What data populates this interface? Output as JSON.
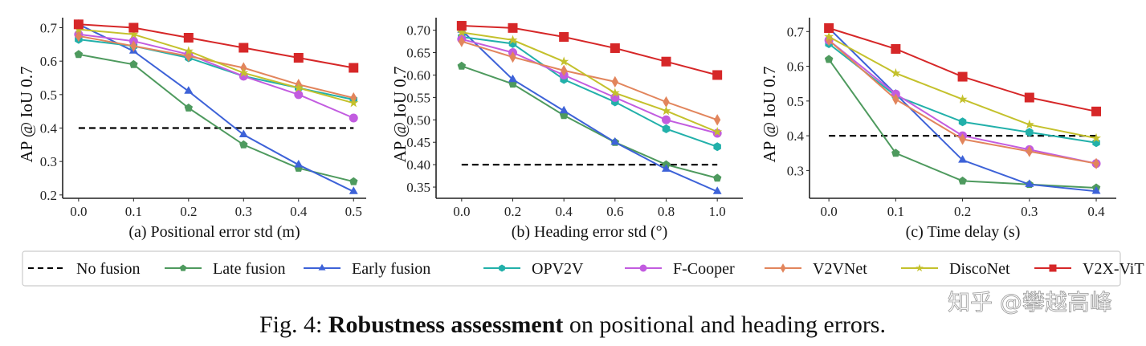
{
  "chart_data": [
    {
      "type": "line",
      "xlabel": "(a) Positional error std (m)",
      "ylabel": "AP @ IoU 0.7",
      "x": [
        0.0,
        0.1,
        0.2,
        0.3,
        0.4,
        0.5
      ],
      "xticks": [
        "0.0",
        "0.1",
        "0.2",
        "0.3",
        "0.4",
        "0.5"
      ],
      "yticks": [
        "0.2",
        "0.3",
        "0.4",
        "0.5",
        "0.6",
        "0.7"
      ],
      "xlim": [
        -0.029,
        0.523
      ],
      "ylim": [
        0.19,
        0.73
      ],
      "grid": false,
      "series": [
        {
          "name": "No fusion",
          "values": [
            0.4,
            0.4,
            0.4,
            0.4,
            0.4,
            0.4
          ]
        },
        {
          "name": "Late fusion",
          "values": [
            0.62,
            0.59,
            0.46,
            0.35,
            0.28,
            0.24
          ]
        },
        {
          "name": "Early fusion",
          "values": [
            0.71,
            0.63,
            0.51,
            0.38,
            0.29,
            0.21
          ]
        },
        {
          "name": "OPV2V",
          "values": [
            0.665,
            0.645,
            0.61,
            0.555,
            0.52,
            0.485
          ]
        },
        {
          "name": "F-Cooper",
          "values": [
            0.68,
            0.66,
            0.62,
            0.555,
            0.5,
            0.43
          ]
        },
        {
          "name": "V2VNet",
          "values": [
            0.675,
            0.645,
            0.615,
            0.58,
            0.53,
            0.49
          ]
        },
        {
          "name": "DiscoNet",
          "values": [
            0.695,
            0.68,
            0.63,
            0.565,
            0.52,
            0.475
          ]
        },
        {
          "name": "V2X-ViT",
          "values": [
            0.71,
            0.7,
            0.67,
            0.64,
            0.61,
            0.58
          ]
        }
      ]
    },
    {
      "type": "line",
      "xlabel": "(b) Heading error std (°)",
      "ylabel": "AP @ IoU 0.7",
      "x": [
        0.0,
        0.2,
        0.4,
        0.6,
        0.8,
        1.0
      ],
      "xticks": [
        "0.0",
        "0.2",
        "0.4",
        "0.6",
        "0.8",
        "1.0"
      ],
      "yticks": [
        "0.35",
        "0.40",
        "0.45",
        "0.50",
        "0.55",
        "0.60",
        "0.65",
        "0.70"
      ],
      "xlim": [
        -0.1,
        1.1
      ],
      "ylim": [
        0.325,
        0.728
      ],
      "grid": false,
      "series": [
        {
          "name": "No fusion",
          "values": [
            0.4,
            0.4,
            0.4,
            0.4,
            0.4,
            0.4
          ]
        },
        {
          "name": "Late fusion",
          "values": [
            0.62,
            0.58,
            0.51,
            0.45,
            0.4,
            0.37
          ]
        },
        {
          "name": "Early fusion",
          "values": [
            0.7,
            0.59,
            0.52,
            0.45,
            0.39,
            0.34
          ]
        },
        {
          "name": "OPV2V",
          "values": [
            0.685,
            0.67,
            0.59,
            0.54,
            0.48,
            0.44
          ]
        },
        {
          "name": "F-Cooper",
          "values": [
            0.68,
            0.65,
            0.6,
            0.55,
            0.5,
            0.47
          ]
        },
        {
          "name": "V2VNet",
          "values": [
            0.675,
            0.64,
            0.61,
            0.585,
            0.54,
            0.5
          ]
        },
        {
          "name": "DiscoNet",
          "values": [
            0.695,
            0.678,
            0.63,
            0.56,
            0.52,
            0.473
          ]
        },
        {
          "name": "V2X-ViT",
          "values": [
            0.71,
            0.705,
            0.685,
            0.66,
            0.63,
            0.6
          ]
        }
      ]
    },
    {
      "type": "line",
      "xlabel": "(c) Time delay (s)",
      "ylabel": "AP @ IoU 0.7",
      "x": [
        0.0,
        0.1,
        0.2,
        0.3,
        0.4
      ],
      "xticks": [
        "0.0",
        "0.1",
        "0.2",
        "0.3",
        "0.4"
      ],
      "yticks": [
        "0.3",
        "0.4",
        "0.5",
        "0.6",
        "0.7"
      ],
      "xlim": [
        -0.029,
        0.43
      ],
      "ylim": [
        0.22,
        0.74
      ],
      "grid": false,
      "series": [
        {
          "name": "No fusion",
          "values": [
            0.4,
            0.4,
            0.4,
            0.4,
            0.4
          ]
        },
        {
          "name": "Late fusion",
          "values": [
            0.62,
            0.35,
            0.27,
            0.26,
            0.25
          ]
        },
        {
          "name": "Early fusion",
          "values": [
            0.71,
            0.52,
            0.33,
            0.26,
            0.24
          ]
        },
        {
          "name": "OPV2V",
          "values": [
            0.665,
            0.515,
            0.44,
            0.41,
            0.38
          ]
        },
        {
          "name": "F-Cooper",
          "values": [
            0.675,
            0.52,
            0.4,
            0.36,
            0.32
          ]
        },
        {
          "name": "V2VNet",
          "values": [
            0.675,
            0.505,
            0.39,
            0.355,
            0.32
          ]
        },
        {
          "name": "DiscoNet",
          "values": [
            0.685,
            0.58,
            0.505,
            0.432,
            0.393
          ]
        },
        {
          "name": "V2X-ViT",
          "values": [
            0.71,
            0.65,
            0.57,
            0.51,
            0.47
          ]
        }
      ]
    }
  ],
  "legend": {
    "placement": "bottom",
    "items": [
      {
        "label": "No fusion",
        "color": "#000000",
        "marker": "none",
        "dash": true
      },
      {
        "label": "Late fusion",
        "color": "#4e9a5e",
        "marker": "pentagon"
      },
      {
        "label": "Early fusion",
        "color": "#3d62d8",
        "marker": "triangle"
      },
      {
        "label": "OPV2V",
        "color": "#22b0aa",
        "marker": "hexagon"
      },
      {
        "label": "F-Cooper",
        "color": "#c25ce0",
        "marker": "circle"
      },
      {
        "label": "V2VNet",
        "color": "#e2855c",
        "marker": "thin-diamond"
      },
      {
        "label": "DiscoNet",
        "color": "#c4c12c",
        "marker": "star"
      },
      {
        "label": "V2X-ViT",
        "color": "#d62728",
        "marker": "square"
      }
    ]
  },
  "caption": {
    "prefix": "Fig. 4: ",
    "bold": "Robustness assessment",
    "suffix": " on positional and heading errors."
  },
  "watermark": "知乎 @攀越高峰"
}
